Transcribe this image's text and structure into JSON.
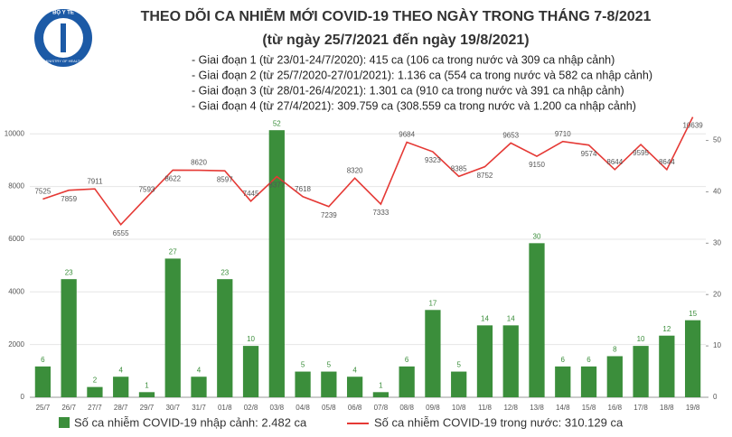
{
  "logo": {
    "top": "BỘ Y TẾ",
    "bottom": "MINISTRY OF HEALTH"
  },
  "chart_data": {
    "type": "bar",
    "title": "THEO DÕI CA NHIỄM MỚI COVID-19 THEO NGÀY TRONG THÁNG 7-8/2021",
    "subtitle": "(từ ngày 25/7/2021 đến ngày 19/8/2021)",
    "annotations": [
      "- Giai đoạn 1 (từ 23/01-24/7/2020): 415 ca (106 ca trong nước và 309 ca nhập cảnh)",
      "- Giai đoạn 2 (từ 25/7/2020-27/01/2021): 1.136 ca (554 ca trong nước và 582 ca nhập cảnh)",
      "- Giai đoạn 3 (từ 28/01-26/4/2021): 1.301 ca (910 ca trong nước và 391 ca nhập cảnh)",
      "- Giai đoạn 4 (từ 27/4/2021): 309.759 ca (308.559 ca trong nước và 1.200 ca nhập cảnh)"
    ],
    "categories": [
      "25/7",
      "26/7",
      "27/7",
      "28/7",
      "29/7",
      "30/7",
      "31/7",
      "01/8",
      "02/8",
      "03/8",
      "04/8",
      "05/8",
      "06/8",
      "07/8",
      "08/8",
      "09/8",
      "10/8",
      "11/8",
      "12/8",
      "13/8",
      "14/8",
      "15/8",
      "16/8",
      "17/8",
      "18/8",
      "19/8"
    ],
    "series": [
      {
        "name": "Số ca nhiễm COVID-19 nhập cảnh: 2.482 ca",
        "type": "bar",
        "axis": "y2",
        "color": "#3b8e3b",
        "values": [
          6,
          23,
          2,
          4,
          1,
          27,
          4,
          23,
          10,
          52,
          5,
          5,
          4,
          1,
          6,
          17,
          5,
          14,
          14,
          30,
          6,
          6,
          8,
          10,
          12,
          15
        ]
      },
      {
        "name": "Số ca nhiễm COVID-19 trong nước: 310.129 ca",
        "type": "line",
        "color": "#e53935",
        "values": [
          7525,
          7859,
          7911,
          6555,
          7593,
          8622,
          8620,
          8597,
          7445,
          8377,
          7618,
          7239,
          8320,
          7333,
          9684,
          9323,
          8385,
          8752,
          9653,
          9150,
          9710,
          9574,
          8644,
          9595,
          8644,
          10639
        ]
      }
    ],
    "ylim": [
      0,
      10900
    ],
    "yticks": [
      0,
      2000,
      4000,
      6000,
      8000,
      10000
    ],
    "y2lim": [
      0,
      55.9
    ],
    "y2ticks": [
      0,
      10,
      20,
      30,
      40,
      50
    ],
    "grid": true
  }
}
